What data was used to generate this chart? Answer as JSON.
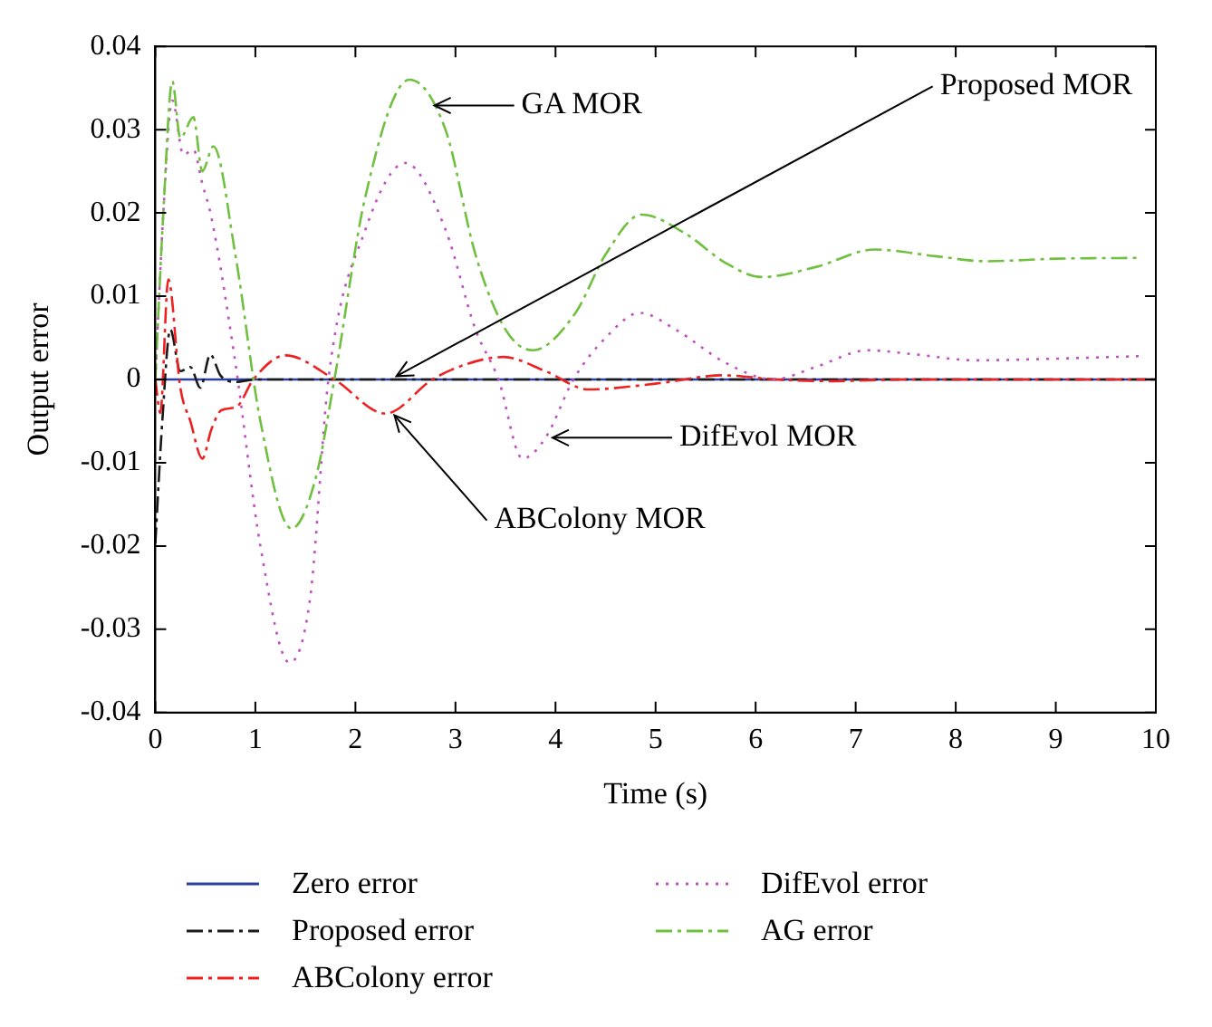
{
  "chart_data": {
    "type": "line",
    "xlabel": "Time (s)",
    "ylabel": "Output error",
    "xlim": [
      0,
      10
    ],
    "xticks": [
      0,
      1,
      2,
      3,
      4,
      5,
      6,
      7,
      8,
      9,
      10
    ],
    "ylim": [
      -0.04,
      0.04
    ],
    "yticks": [
      -0.04,
      -0.03,
      -0.02,
      -0.01,
      0,
      0.01,
      0.02,
      0.03,
      0.04
    ],
    "grid": false,
    "legend": "bottom",
    "marker": "none",
    "series": [
      {
        "name": "Zero error",
        "color": "#2b3f9e",
        "line_style": "solid",
        "x": [
          0,
          10
        ],
        "values": [
          0,
          0
        ]
      },
      {
        "name": "Proposed error",
        "color": "#1a1a1a",
        "line_style": "dashed",
        "x": [
          0,
          0.07,
          0.15,
          0.25,
          0.35,
          0.45,
          0.55,
          0.65,
          0.8,
          1,
          2,
          3,
          4,
          6,
          8,
          10
        ],
        "values": [
          -0.0197,
          -0.005,
          0.006,
          0.001,
          0.0015,
          -0.001,
          0.003,
          0.0005,
          -0.0003,
          0,
          0,
          0,
          0,
          0,
          0,
          0
        ]
      },
      {
        "name": "ABColony error",
        "color": "#ee2020",
        "line_style": "dashed",
        "x": [
          0,
          0.05,
          0.13,
          0.25,
          0.35,
          0.47,
          0.56,
          0.66,
          0.81,
          0.98,
          1.3,
          1.79,
          2.3,
          2.77,
          3.1,
          3.48,
          3.9,
          4.33,
          5,
          5.68,
          6.2,
          6.74,
          7.5,
          8.5,
          10
        ],
        "values": [
          0,
          -0.004,
          0.012,
          -0.001,
          -0.005,
          -0.0095,
          -0.006,
          -0.0037,
          -0.0033,
          0,
          0.0029,
          0,
          -0.0041,
          0,
          0.0018,
          0.0027,
          0.001,
          -0.0012,
          -0.0005,
          0.0005,
          0,
          -0.0002,
          0,
          0,
          0
        ]
      },
      {
        "name": "DifEvol error",
        "color": "#c050c0",
        "line_style": "dotted",
        "x": [
          0,
          0.08,
          0.17,
          0.28,
          0.38,
          0.47,
          0.56,
          0.8,
          1.05,
          1.34,
          1.55,
          1.73,
          2.1,
          2.5,
          2.9,
          3.2,
          3.43,
          3.67,
          3.9,
          4.18,
          4.5,
          4.84,
          5.2,
          5.7,
          6.18,
          6.6,
          7.12,
          7.6,
          8.19,
          9,
          9.83
        ],
        "values": [
          0,
          0.02,
          0.0335,
          0.027,
          0.0276,
          0.0235,
          0.0195,
          0.002,
          -0.02,
          -0.034,
          -0.026,
          0,
          0.018,
          0.026,
          0.018,
          0.006,
          0,
          -0.0095,
          -0.007,
          0,
          0.005,
          0.008,
          0.006,
          0.002,
          0,
          0.0015,
          0.0035,
          0.003,
          0.0023,
          0.0025,
          0.0028
        ]
      },
      {
        "name": "AG error",
        "color": "#70c040",
        "line_style": "dashed",
        "x": [
          0,
          0.08,
          0.17,
          0.25,
          0.38,
          0.47,
          0.58,
          0.8,
          1.05,
          1.36,
          1.6,
          1.79,
          2.1,
          2.54,
          2.9,
          3.2,
          3.5,
          3.77,
          4.2,
          4.5,
          4.86,
          5.3,
          5.7,
          6.06,
          6.6,
          7.19,
          7.8,
          8.3,
          9,
          9.83
        ],
        "values": [
          0,
          0.02,
          0.0358,
          0.029,
          0.0315,
          0.025,
          0.028,
          0.015,
          -0.005,
          -0.0179,
          -0.012,
          0,
          0.022,
          0.036,
          0.03,
          0.015,
          0.006,
          0.0035,
          0.008,
          0.015,
          0.0198,
          0.0175,
          0.014,
          0.0123,
          0.0135,
          0.0156,
          0.0148,
          0.0142,
          0.0145,
          0.0146
        ]
      }
    ],
    "annotations": [
      {
        "text": "GA MOR",
        "x": 2.79,
        "y": 0.0329
      },
      {
        "text": "Proposed MOR",
        "x": 2.41,
        "y": 0.0004
      },
      {
        "text": "DifEvol MOR",
        "x": 3.97,
        "y": -0.007
      },
      {
        "text": "ABColony MOR",
        "x": 2.39,
        "y": -0.0043
      }
    ]
  }
}
